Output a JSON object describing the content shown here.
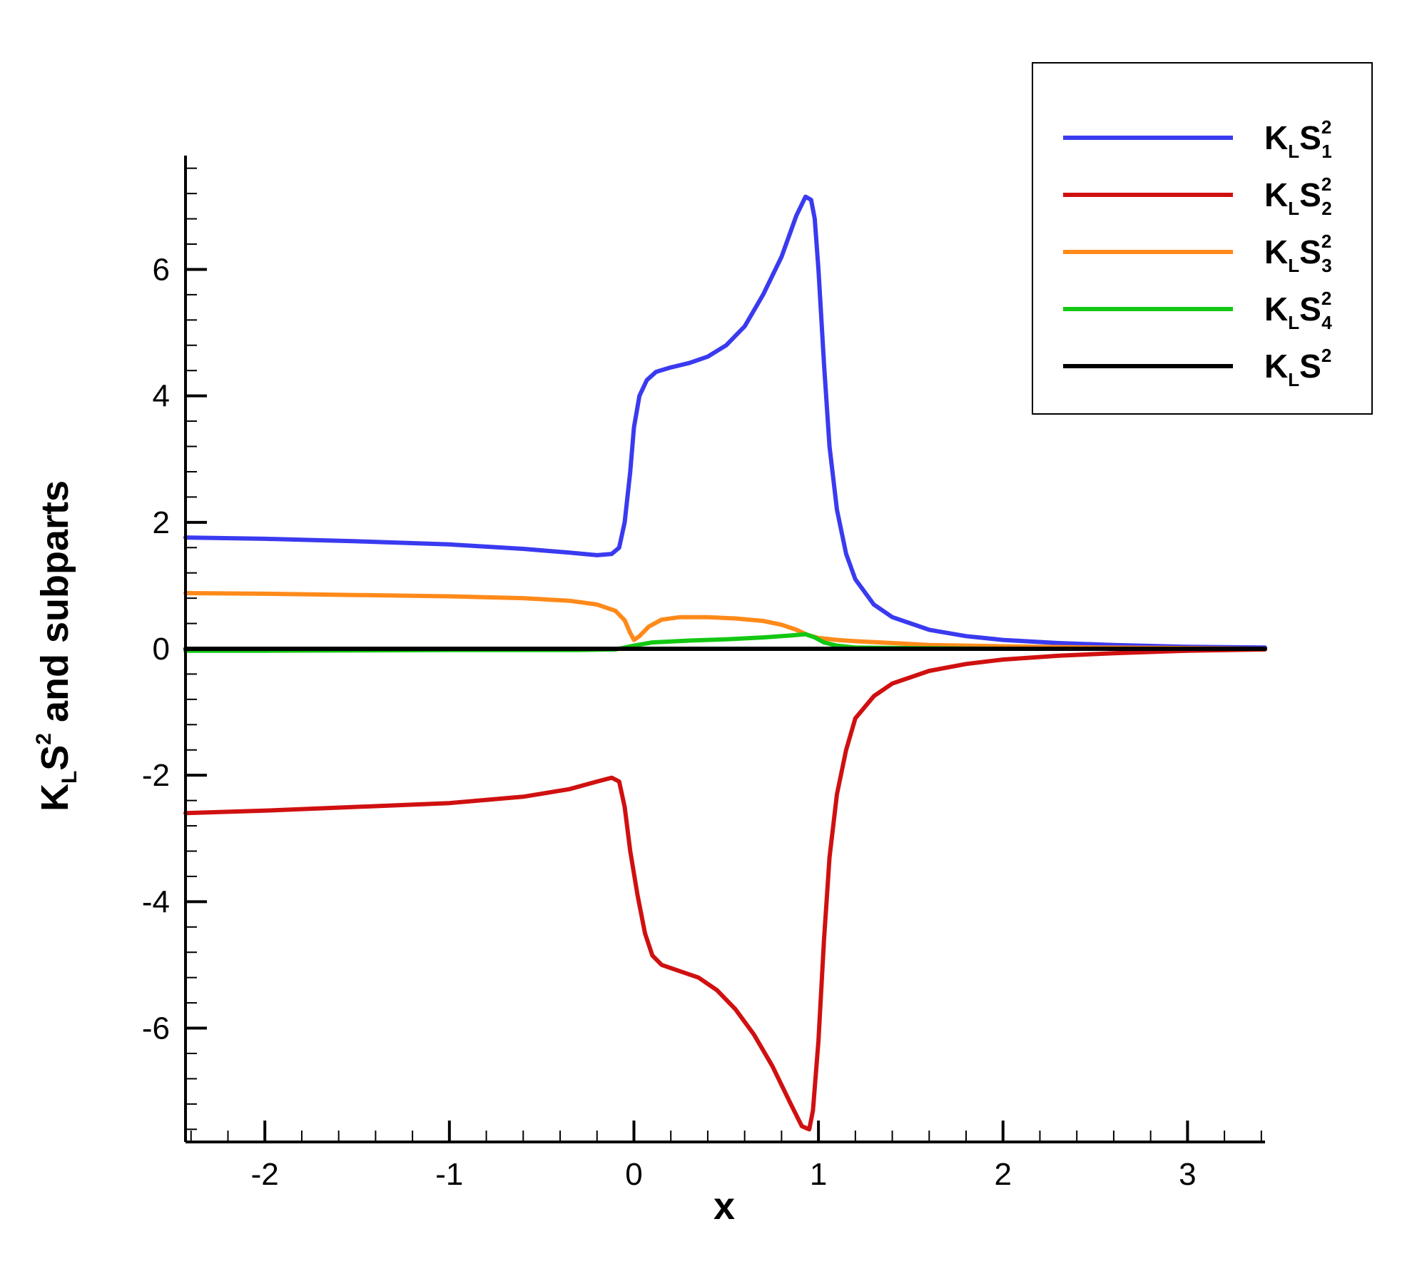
{
  "chart_data": {
    "type": "line",
    "xlabel": "x",
    "ylabel": {
      "base": "K",
      "sub": "L",
      "main": "S",
      "sup": "2",
      "rest": " and subparts"
    },
    "xlim": [
      -2.43,
      3.42
    ],
    "ylim": [
      -7.8,
      7.8
    ],
    "x_ticks": [
      -2,
      -1,
      0,
      1,
      2,
      3
    ],
    "y_ticks": [
      -6,
      -4,
      -2,
      0,
      2,
      4,
      6
    ],
    "x_tick_labels": [
      "-2",
      "-1",
      "0",
      "1",
      "2",
      "3"
    ],
    "y_tick_labels": [
      "-6",
      "-4",
      "-2",
      "0",
      "2",
      "4",
      "6"
    ],
    "grid": false,
    "legend_position": "top-right",
    "series": [
      {
        "name": "K_L S_1^2",
        "label": {
          "base": "K",
          "sub1": "L",
          "main": "S",
          "sub2": "1",
          "sup": "2"
        },
        "color": "#3a3af0",
        "points": [
          [
            -2.43,
            1.76
          ],
          [
            -2.0,
            1.74
          ],
          [
            -1.5,
            1.7
          ],
          [
            -1.0,
            1.65
          ],
          [
            -0.6,
            1.58
          ],
          [
            -0.35,
            1.52
          ],
          [
            -0.2,
            1.48
          ],
          [
            -0.12,
            1.5
          ],
          [
            -0.08,
            1.6
          ],
          [
            -0.05,
            2.0
          ],
          [
            -0.02,
            2.8
          ],
          [
            0.0,
            3.5
          ],
          [
            0.03,
            4.0
          ],
          [
            0.07,
            4.25
          ],
          [
            0.12,
            4.38
          ],
          [
            0.2,
            4.45
          ],
          [
            0.3,
            4.52
          ],
          [
            0.4,
            4.62
          ],
          [
            0.5,
            4.8
          ],
          [
            0.6,
            5.1
          ],
          [
            0.7,
            5.6
          ],
          [
            0.8,
            6.2
          ],
          [
            0.88,
            6.85
          ],
          [
            0.93,
            7.15
          ],
          [
            0.96,
            7.1
          ],
          [
            0.98,
            6.8
          ],
          [
            1.0,
            6.0
          ],
          [
            1.03,
            4.5
          ],
          [
            1.06,
            3.2
          ],
          [
            1.1,
            2.2
          ],
          [
            1.15,
            1.5
          ],
          [
            1.2,
            1.1
          ],
          [
            1.3,
            0.7
          ],
          [
            1.4,
            0.5
          ],
          [
            1.6,
            0.3
          ],
          [
            1.8,
            0.2
          ],
          [
            2.0,
            0.14
          ],
          [
            2.3,
            0.09
          ],
          [
            2.6,
            0.06
          ],
          [
            3.0,
            0.03
          ],
          [
            3.42,
            0.02
          ]
        ]
      },
      {
        "name": "K_L S_2^2",
        "label": {
          "base": "K",
          "sub1": "L",
          "main": "S",
          "sub2": "2",
          "sup": "2"
        },
        "color": "#d01010",
        "points": [
          [
            -2.43,
            -2.6
          ],
          [
            -2.0,
            -2.56
          ],
          [
            -1.5,
            -2.5
          ],
          [
            -1.0,
            -2.44
          ],
          [
            -0.6,
            -2.34
          ],
          [
            -0.35,
            -2.22
          ],
          [
            -0.2,
            -2.1
          ],
          [
            -0.12,
            -2.04
          ],
          [
            -0.08,
            -2.1
          ],
          [
            -0.05,
            -2.5
          ],
          [
            -0.02,
            -3.2
          ],
          [
            0.02,
            -3.9
          ],
          [
            0.06,
            -4.5
          ],
          [
            0.1,
            -4.85
          ],
          [
            0.15,
            -5.0
          ],
          [
            0.25,
            -5.1
          ],
          [
            0.35,
            -5.2
          ],
          [
            0.45,
            -5.4
          ],
          [
            0.55,
            -5.7
          ],
          [
            0.65,
            -6.1
          ],
          [
            0.75,
            -6.6
          ],
          [
            0.85,
            -7.2
          ],
          [
            0.91,
            -7.55
          ],
          [
            0.95,
            -7.6
          ],
          [
            0.97,
            -7.3
          ],
          [
            1.0,
            -6.2
          ],
          [
            1.03,
            -4.6
          ],
          [
            1.06,
            -3.3
          ],
          [
            1.1,
            -2.3
          ],
          [
            1.15,
            -1.6
          ],
          [
            1.2,
            -1.1
          ],
          [
            1.3,
            -0.75
          ],
          [
            1.4,
            -0.55
          ],
          [
            1.6,
            -0.35
          ],
          [
            1.8,
            -0.24
          ],
          [
            2.0,
            -0.17
          ],
          [
            2.3,
            -0.11
          ],
          [
            2.6,
            -0.07
          ],
          [
            3.0,
            -0.03
          ],
          [
            3.42,
            -0.01
          ]
        ]
      },
      {
        "name": "K_L S_3^2",
        "label": {
          "base": "K",
          "sub1": "L",
          "main": "S",
          "sub2": "3",
          "sup": "2"
        },
        "color": "#ff8a1a",
        "points": [
          [
            -2.43,
            0.88
          ],
          [
            -2.0,
            0.87
          ],
          [
            -1.5,
            0.85
          ],
          [
            -1.0,
            0.83
          ],
          [
            -0.6,
            0.8
          ],
          [
            -0.35,
            0.76
          ],
          [
            -0.2,
            0.7
          ],
          [
            -0.1,
            0.6
          ],
          [
            -0.05,
            0.45
          ],
          [
            -0.02,
            0.25
          ],
          [
            0.0,
            0.14
          ],
          [
            0.03,
            0.2
          ],
          [
            0.08,
            0.35
          ],
          [
            0.15,
            0.46
          ],
          [
            0.25,
            0.5
          ],
          [
            0.4,
            0.5
          ],
          [
            0.55,
            0.48
          ],
          [
            0.7,
            0.44
          ],
          [
            0.8,
            0.38
          ],
          [
            0.88,
            0.3
          ],
          [
            0.94,
            0.22
          ],
          [
            1.0,
            0.17
          ],
          [
            1.1,
            0.14
          ],
          [
            1.2,
            0.12
          ],
          [
            1.4,
            0.09
          ],
          [
            1.6,
            0.06
          ],
          [
            2.0,
            0.04
          ],
          [
            2.5,
            0.02
          ],
          [
            3.0,
            0.01
          ],
          [
            3.42,
            0.0
          ]
        ]
      },
      {
        "name": "K_L S_4^2",
        "label": {
          "base": "K",
          "sub1": "L",
          "main": "S",
          "sub2": "4",
          "sup": "2"
        },
        "color": "#12c812",
        "points": [
          [
            -2.43,
            -0.03
          ],
          [
            -2.0,
            -0.03
          ],
          [
            -1.0,
            -0.02
          ],
          [
            -0.3,
            -0.02
          ],
          [
            -0.1,
            -0.01
          ],
          [
            0.0,
            0.05
          ],
          [
            0.1,
            0.1
          ],
          [
            0.3,
            0.13
          ],
          [
            0.5,
            0.15
          ],
          [
            0.7,
            0.18
          ],
          [
            0.85,
            0.21
          ],
          [
            0.93,
            0.23
          ],
          [
            0.98,
            0.18
          ],
          [
            1.03,
            0.1
          ],
          [
            1.1,
            0.05
          ],
          [
            1.2,
            0.02
          ],
          [
            1.5,
            0.01
          ],
          [
            2.0,
            0.0
          ],
          [
            3.42,
            0.0
          ]
        ]
      },
      {
        "name": "K_L S^2",
        "label": {
          "base": "K",
          "sub1": "L",
          "main": "S",
          "sub2": "",
          "sup": "2"
        },
        "color": "#000000",
        "points": [
          [
            -2.43,
            0.0
          ],
          [
            3.42,
            0.0
          ]
        ]
      }
    ]
  }
}
